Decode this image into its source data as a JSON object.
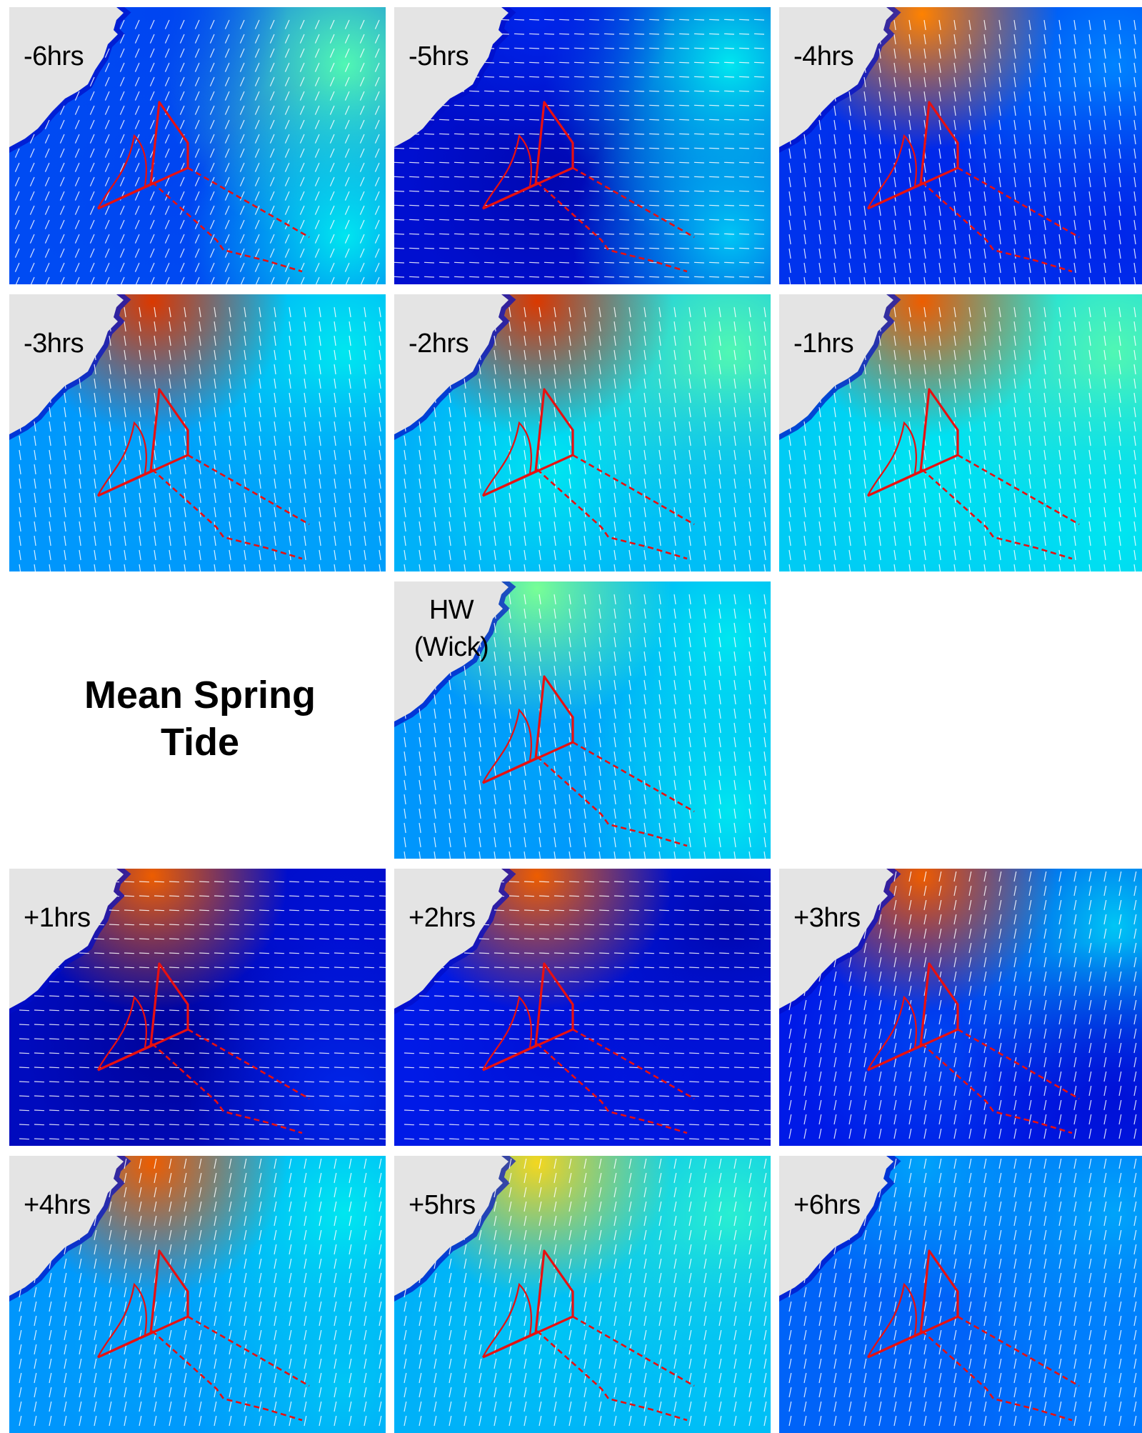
{
  "title_lines": [
    "Mean Spring",
    "Tide"
  ],
  "colors": {
    "land": "#e4e4e4",
    "boundary": "#e81010",
    "vector": "#ffffff"
  },
  "panels": [
    {
      "id": "m6",
      "label": "-6hrs",
      "row": 0,
      "col": 0,
      "speed": [
        0.05,
        0.2,
        0.5,
        0.05,
        0.1,
        0.35
      ],
      "field": {
        "n": 0.2,
        "ne": 0.55,
        "se": 0.45,
        "c": 0.2
      },
      "flow": "in"
    },
    {
      "id": "m5",
      "label": "-5hrs",
      "row": 0,
      "col": 1,
      "speed": [
        0.1,
        0.45,
        0.55,
        0.0,
        0.05,
        0.35
      ],
      "field": {
        "n": 0.15,
        "ne": 0.45,
        "se": 0.4,
        "c": 0.05
      },
      "flow": "west"
    },
    {
      "id": "m4",
      "label": "-4hrs",
      "row": 0,
      "col": 2,
      "speed": [
        0.85,
        0.45,
        0.2,
        0.05,
        0.1,
        0.2
      ],
      "field": {
        "n": 0.85,
        "ne": 0.3,
        "se": 0.15,
        "c": 0.15
      },
      "flow": "south"
    },
    {
      "id": "m3",
      "label": "-3hrs",
      "row": 1,
      "col": 0,
      "speed": [
        0.95,
        0.5,
        0.45,
        0.25,
        0.3,
        0.25
      ],
      "field": {
        "n": 0.95,
        "ne": 0.45,
        "se": 0.35,
        "c": 0.35
      },
      "flow": "south"
    },
    {
      "id": "m2",
      "label": "-2hrs",
      "row": 1,
      "col": 1,
      "speed": [
        0.95,
        0.65,
        0.5,
        0.3,
        0.35,
        0.3
      ],
      "field": {
        "n": 0.95,
        "ne": 0.55,
        "se": 0.4,
        "c": 0.45
      },
      "flow": "south"
    },
    {
      "id": "m1",
      "label": "-1hrs",
      "row": 1,
      "col": 2,
      "speed": [
        0.9,
        0.55,
        0.5,
        0.3,
        0.35,
        0.3
      ],
      "field": {
        "n": 0.9,
        "ne": 0.55,
        "se": 0.45,
        "c": 0.45
      },
      "flow": "south"
    },
    {
      "id": "hw",
      "label": "HW",
      "label2": "(Wick)",
      "row": 2,
      "col": 1,
      "speed": [
        0.6,
        0.45,
        0.45,
        0.25,
        0.3,
        0.35
      ],
      "field": {
        "n": 0.6,
        "ne": 0.45,
        "se": 0.45,
        "c": 0.35
      },
      "flow": "south"
    },
    {
      "id": "p1",
      "label": "+1hrs",
      "row": 3,
      "col": 0,
      "speed": [
        0.9,
        0.1,
        0.15,
        0.0,
        0.05,
        0.3
      ],
      "field": {
        "n": 0.9,
        "ne": 0.1,
        "se": 0.15,
        "c": 0.02
      },
      "flow": "east"
    },
    {
      "id": "p2",
      "label": "+2hrs",
      "row": 3,
      "col": 1,
      "speed": [
        0.9,
        0.2,
        0.1,
        0.05,
        0.1,
        0.25
      ],
      "field": {
        "n": 0.9,
        "ne": 0.05,
        "se": 0.1,
        "c": 0.1
      },
      "flow": "east"
    },
    {
      "id": "p3",
      "label": "+3hrs",
      "row": 3,
      "col": 2,
      "speed": [
        0.9,
        0.4,
        0.15,
        0.15,
        0.2,
        0.15
      ],
      "field": {
        "n": 0.9,
        "ne": 0.4,
        "se": 0.1,
        "c": 0.2
      },
      "flow": "north"
    },
    {
      "id": "p4",
      "label": "+4hrs",
      "row": 4,
      "col": 0,
      "speed": [
        0.9,
        0.45,
        0.4,
        0.25,
        0.35,
        0.3
      ],
      "field": {
        "n": 0.9,
        "ne": 0.45,
        "se": 0.4,
        "c": 0.35
      },
      "flow": "north"
    },
    {
      "id": "p5",
      "label": "+5hrs",
      "row": 4,
      "col": 1,
      "speed": [
        0.75,
        0.5,
        0.45,
        0.25,
        0.35,
        0.3
      ],
      "field": {
        "n": 0.75,
        "ne": 0.5,
        "se": 0.4,
        "c": 0.4
      },
      "flow": "north"
    },
    {
      "id": "p6",
      "label": "+6hrs",
      "row": 4,
      "col": 2,
      "speed": [
        0.35,
        0.35,
        0.3,
        0.15,
        0.2,
        0.2
      ],
      "field": {
        "n": 0.35,
        "ne": 0.35,
        "se": 0.3,
        "c": 0.25
      },
      "flow": "north"
    }
  ]
}
